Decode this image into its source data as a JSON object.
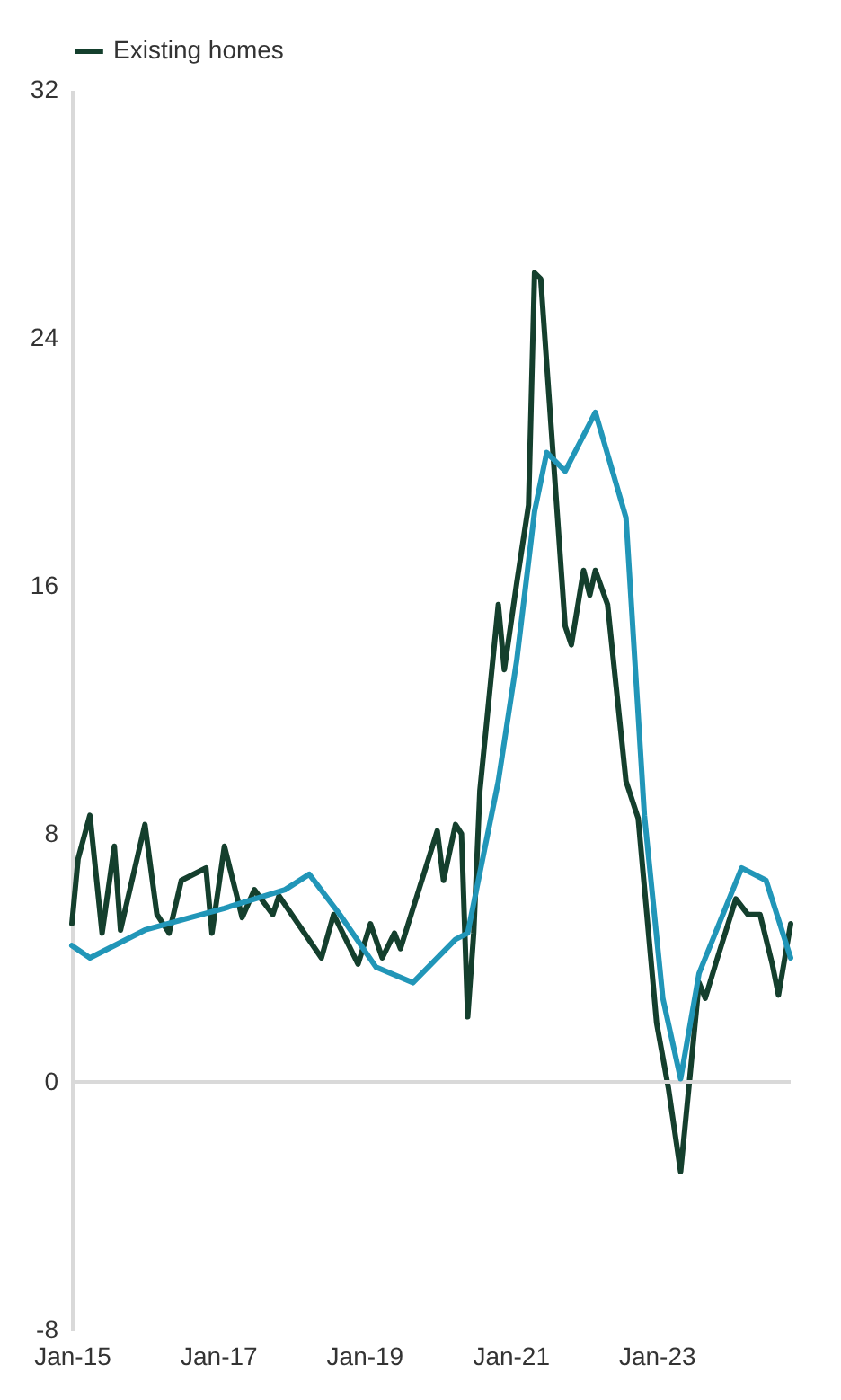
{
  "chart_data": {
    "type": "line",
    "legend": "top left",
    "grid": false,
    "xlim": [
      "2015-01",
      "2024-11"
    ],
    "xticks": [
      {
        "value": "2015-01",
        "label": "Jan-15"
      },
      {
        "value": "2017-01",
        "label": "Jan-17"
      },
      {
        "value": "2019-01",
        "label": "Jan-19"
      },
      {
        "value": "2021-01",
        "label": "Jan-21"
      },
      {
        "value": "2023-01",
        "label": "Jan-23"
      }
    ],
    "ylim": [
      -8,
      32
    ],
    "yticks": [
      -8,
      0,
      8,
      16,
      24,
      32
    ],
    "ref_lines": [
      {
        "axis": "y",
        "value": 0,
        "color": "#d9d9d9"
      }
    ],
    "series": [
      {
        "name": "Existing homes",
        "color": "#143f2d",
        "x": [
          "2015-01",
          "2015-02",
          "2015-04",
          "2015-06",
          "2015-08",
          "2015-09",
          "2016-01",
          "2016-03",
          "2016-05",
          "2016-07",
          "2016-11",
          "2016-12",
          "2017-02",
          "2017-05",
          "2017-07",
          "2017-10",
          "2017-11",
          "2018-06",
          "2018-08",
          "2018-12",
          "2019-02",
          "2019-04",
          "2019-06",
          "2019-07",
          "2019-10",
          "2020-01",
          "2020-02",
          "2020-04",
          "2020-05",
          "2020-06",
          "2020-07",
          "2020-08",
          "2020-11",
          "2020-12",
          "2021-02",
          "2021-04",
          "2021-05",
          "2021-06",
          "2021-10",
          "2021-11",
          "2022-01",
          "2022-02",
          "2022-03",
          "2022-05",
          "2022-08",
          "2022-10",
          "2023-01",
          "2023-03",
          "2023-05",
          "2023-08",
          "2023-09",
          "2023-11",
          "2024-02",
          "2024-04",
          "2024-06",
          "2024-08",
          "2024-09",
          "2024-11"
        ],
        "values": [
          5.1,
          7.2,
          8.6,
          4.8,
          7.6,
          4.9,
          8.3,
          5.4,
          4.8,
          6.5,
          6.9,
          4.8,
          7.6,
          5.3,
          6.2,
          5.4,
          6.0,
          4.0,
          5.4,
          3.8,
          5.1,
          4.0,
          4.8,
          4.3,
          6.2,
          8.1,
          6.5,
          8.3,
          8.0,
          2.1,
          4.8,
          9.4,
          15.4,
          13.3,
          16.1,
          18.6,
          26.1,
          25.9,
          14.7,
          14.1,
          16.5,
          15.7,
          16.5,
          15.4,
          9.7,
          8.5,
          1.9,
          -0.2,
          -2.9,
          3.2,
          2.7,
          4.0,
          5.9,
          5.4,
          5.4,
          3.8,
          2.8,
          5.1
        ]
      },
      {
        "color": "#2196b8",
        "x": [
          "2015-01",
          "2015-04",
          "2016-01",
          "2017-02",
          "2017-12",
          "2018-04",
          "2018-09",
          "2019-03",
          "2019-09",
          "2020-04",
          "2020-06",
          "2020-11",
          "2021-02",
          "2021-05",
          "2021-07",
          "2021-10",
          "2022-03",
          "2022-08",
          "2022-11",
          "2023-02",
          "2023-05",
          "2023-08",
          "2024-03",
          "2024-07",
          "2024-11"
        ],
        "values": [
          4.4,
          4.0,
          4.9,
          5.6,
          6.2,
          6.7,
          5.4,
          3.7,
          3.2,
          4.6,
          4.8,
          9.7,
          13.6,
          18.4,
          20.3,
          19.7,
          21.6,
          18.2,
          8.6,
          2.7,
          0.1,
          3.5,
          6.9,
          6.5,
          4.0
        ]
      }
    ]
  }
}
